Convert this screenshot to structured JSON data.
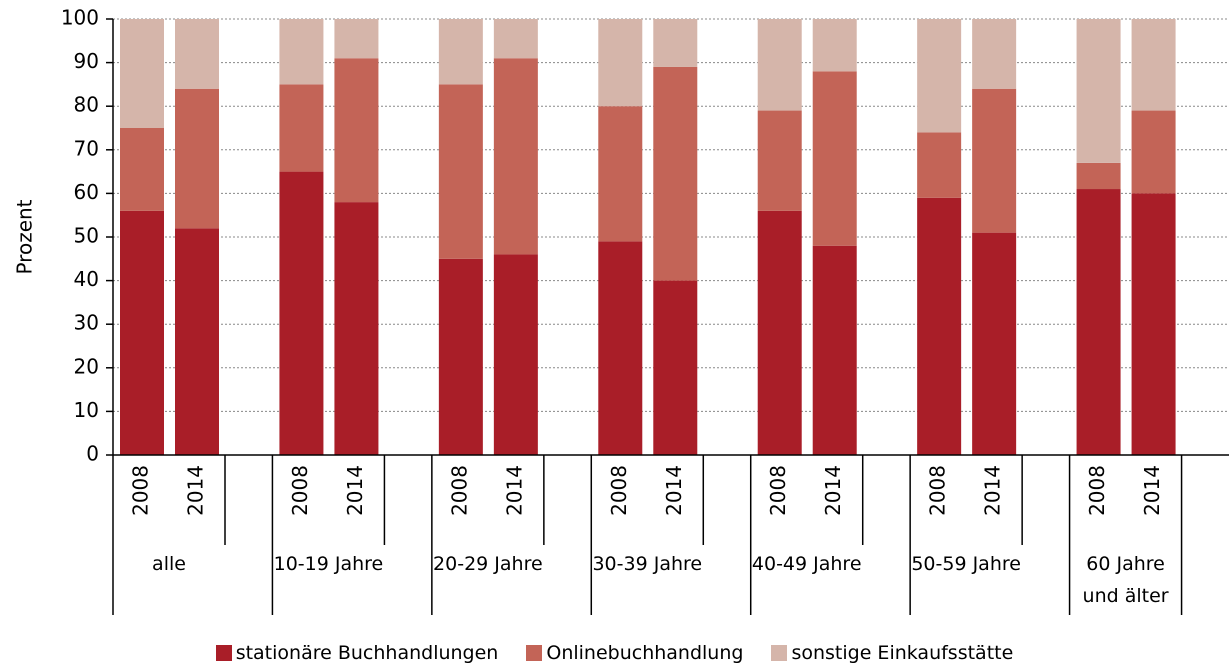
{
  "chart_data": {
    "type": "stacked_bar",
    "y_label": "Prozent",
    "groups": [
      {
        "label": "alle",
        "categories": [
          "2008",
          "2014"
        ]
      },
      {
        "label": "10-19 Jahre",
        "categories": [
          "2008",
          "2014"
        ]
      },
      {
        "label": "20-29 Jahre",
        "categories": [
          "2008",
          "2014"
        ]
      },
      {
        "label": "30-39 Jahre",
        "categories": [
          "2008",
          "2014"
        ]
      },
      {
        "label": "40-49 Jahre",
        "categories": [
          "2008",
          "2014"
        ]
      },
      {
        "label": "50-59 Jahre",
        "categories": [
          "2008",
          "2014"
        ]
      },
      {
        "label": "60 Jahre und älter",
        "categories": [
          "2008",
          "2014"
        ]
      }
    ],
    "series": [
      {
        "name": "stationäre Buchhandlungen",
        "color": "#a91e28",
        "values": [
          56,
          52,
          65,
          58,
          45,
          46,
          49,
          40,
          56,
          48,
          59,
          51,
          61,
          60
        ]
      },
      {
        "name": "Onlinebuchhandlung",
        "color": "#c36457",
        "values": [
          19,
          32,
          20,
          33,
          40,
          45,
          31,
          49,
          23,
          40,
          15,
          33,
          6,
          19
        ]
      },
      {
        "name": "sonstige Einkaufsstätte",
        "color": "#d5b5aa",
        "values": [
          25,
          16,
          15,
          9,
          15,
          9,
          20,
          11,
          21,
          12,
          26,
          16,
          33,
          21
        ]
      }
    ],
    "ylim": [
      0,
      100
    ],
    "yticks": [
      0,
      10,
      20,
      30,
      40,
      50,
      60,
      70,
      80,
      90,
      100
    ],
    "grid": true
  }
}
